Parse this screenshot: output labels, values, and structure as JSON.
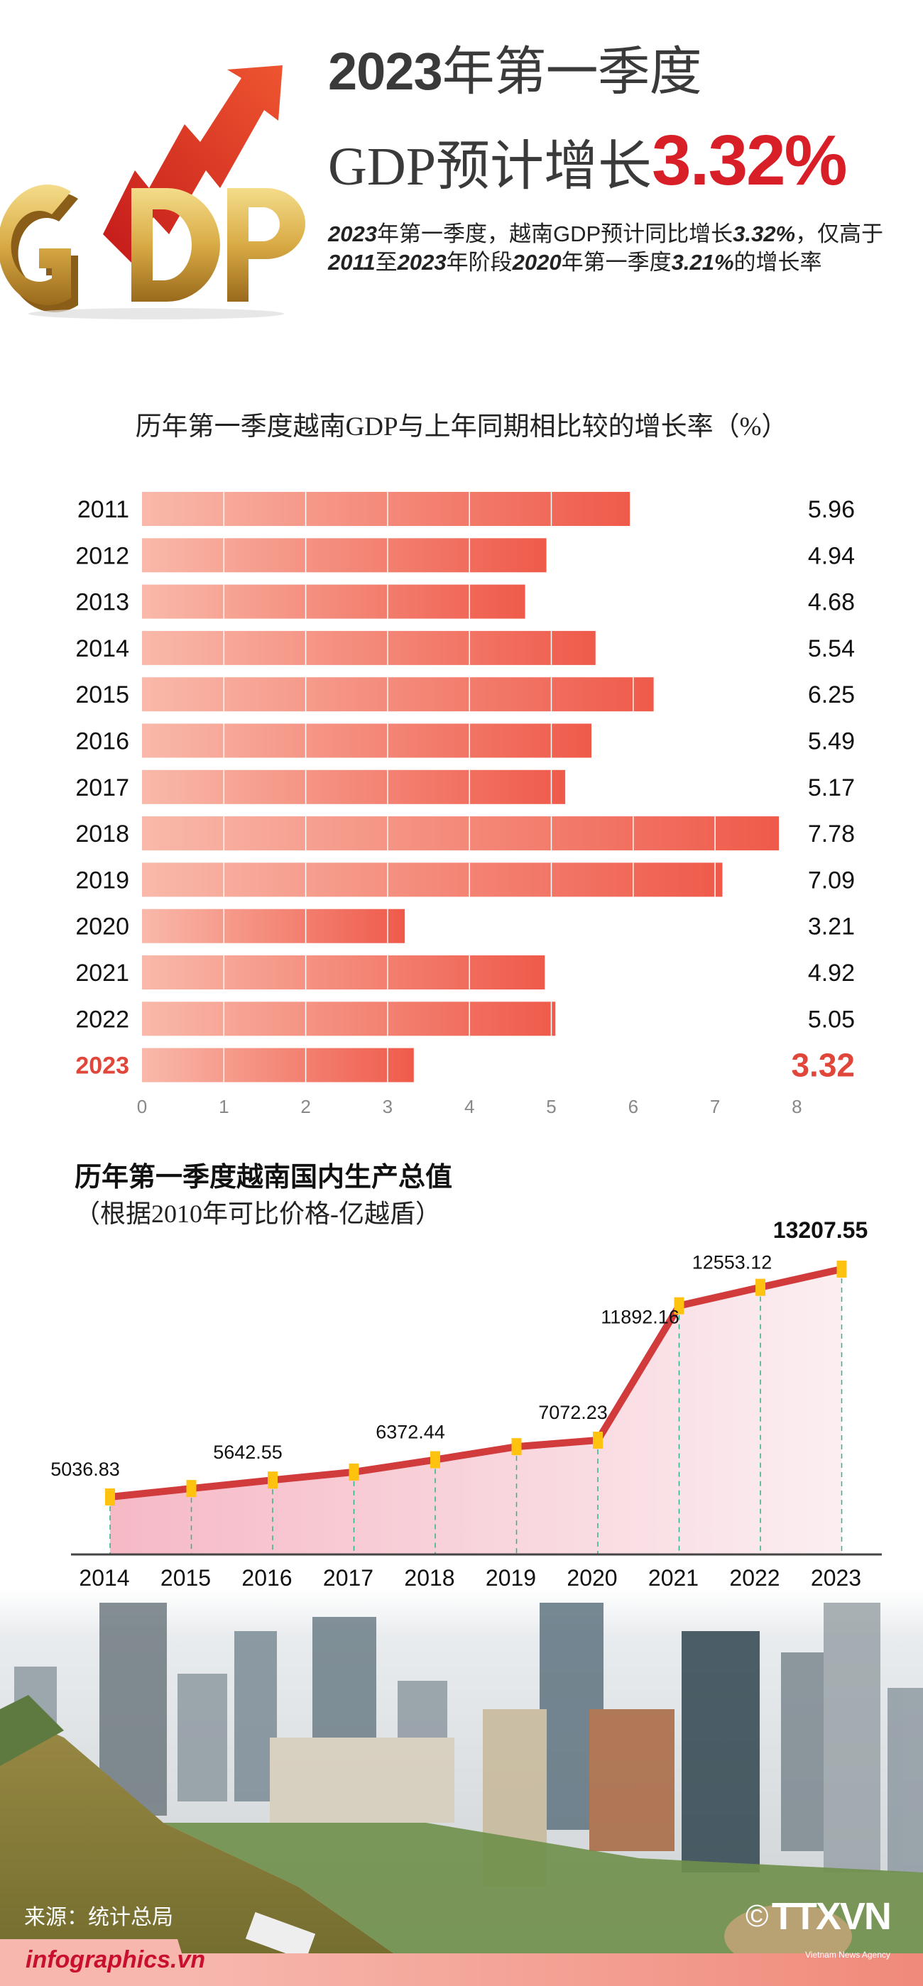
{
  "header": {
    "title_line1_year": "2023",
    "title_line1_rest": "年第一季度",
    "title_line2_text": "GDP预计增长",
    "title_line2_value": "3.32%",
    "description": [
      {
        "text": "2023",
        "bold": true
      },
      {
        "text": "年第一季度，越南GDP预计同比增长",
        "bold": false
      },
      {
        "text": "3.32%",
        "bold": true
      },
      {
        "text": "，仅高于",
        "bold": false
      },
      {
        "text": "2011",
        "bold": true
      },
      {
        "text": "至",
        "bold": false
      },
      {
        "text": "2023",
        "bold": true
      },
      {
        "text": "年阶段",
        "bold": false
      },
      {
        "text": "2020",
        "bold": true
      },
      {
        "text": "年第一季度",
        "bold": false
      },
      {
        "text": "3.21%",
        "bold": true
      },
      {
        "text": "的增长率",
        "bold": false
      }
    ],
    "logo_text": "GDP"
  },
  "chart_data": [
    {
      "type": "bar",
      "orientation": "horizontal",
      "title": "历年第一季度越南GDP与上年同期相比较的增长率（%）",
      "categories": [
        "2011",
        "2012",
        "2013",
        "2014",
        "2015",
        "2016",
        "2017",
        "2018",
        "2019",
        "2020",
        "2021",
        "2022",
        "2023"
      ],
      "values": [
        5.96,
        4.94,
        4.68,
        5.54,
        6.25,
        5.49,
        5.17,
        7.78,
        7.09,
        3.21,
        4.92,
        5.05,
        3.32
      ],
      "value_labels": [
        "5.96",
        "4.94",
        "4.68",
        "5.54",
        "6.25",
        "5.49",
        "5.17",
        "7.78",
        "7.09",
        "3.21",
        "4.92",
        "5.05",
        "3.32"
      ],
      "highlight_category": "2023",
      "xlim": [
        0,
        8
      ],
      "xticks": [
        "0",
        "1",
        "2",
        "3",
        "4",
        "5",
        "6",
        "7",
        "8"
      ],
      "colors": {
        "bar_start": "#f9b9aa",
        "bar_end": "#ef5a4a",
        "highlight": "#e0463a"
      }
    },
    {
      "type": "area",
      "title": "历年第一季度越南国内生产总值",
      "subtitle": "（根据2010年可比价格-亿越盾）",
      "categories": [
        "2014",
        "2015",
        "2016",
        "2017",
        "2018",
        "2019",
        "2020",
        "2021",
        "2022",
        "2023"
      ],
      "values": [
        5036.83,
        5340,
        5642.55,
        5930,
        6372.44,
        6840,
        7072.23,
        11892.16,
        12553.12,
        13207.55
      ],
      "value_labels": [
        "5036.83",
        null,
        "5642.55",
        null,
        "6372.44",
        null,
        "7072.23",
        "11892.16",
        "12553.12",
        "13207.55"
      ],
      "highlight_category": "2023",
      "colors": {
        "line": "#d13b3b",
        "marker": "#ffc20e",
        "fill_start": "#f6b9c6",
        "fill_end": "#fbeef1",
        "dropline": "#2fb38a"
      }
    }
  ],
  "footer": {
    "source": "来源：统计总局",
    "brand": "infographics.vn",
    "agency_logo": "TTXVN",
    "agency_name": "Vietnam News Agency",
    "copyright_symbol": "©"
  }
}
